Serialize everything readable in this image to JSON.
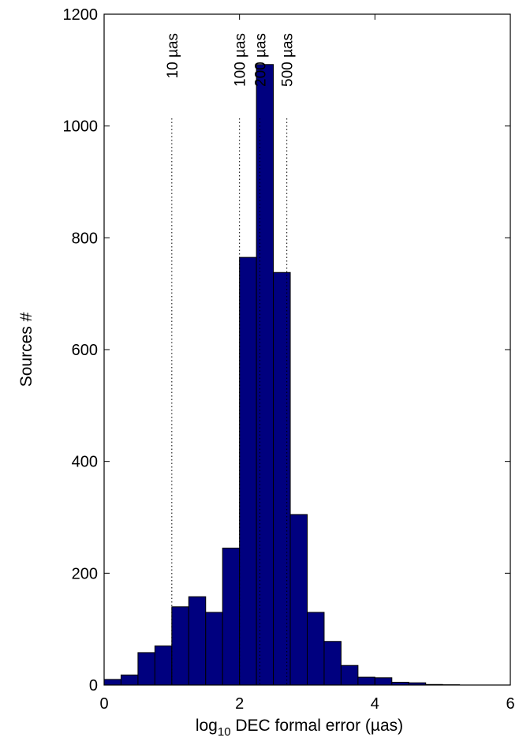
{
  "chart_data": {
    "type": "bar",
    "subtype": "histogram",
    "bin_width": 0.25,
    "bins": [
      {
        "x0": 0.0,
        "x1": 0.25,
        "value": 10
      },
      {
        "x0": 0.25,
        "x1": 0.5,
        "value": 18
      },
      {
        "x0": 0.5,
        "x1": 0.75,
        "value": 58
      },
      {
        "x0": 0.75,
        "x1": 1.0,
        "value": 70
      },
      {
        "x0": 1.0,
        "x1": 1.25,
        "value": 140
      },
      {
        "x0": 1.25,
        "x1": 1.5,
        "value": 158
      },
      {
        "x0": 1.5,
        "x1": 1.75,
        "value": 130
      },
      {
        "x0": 1.75,
        "x1": 2.0,
        "value": 245
      },
      {
        "x0": 2.0,
        "x1": 2.25,
        "value": 765
      },
      {
        "x0": 2.25,
        "x1": 2.5,
        "value": 1110
      },
      {
        "x0": 2.5,
        "x1": 2.75,
        "value": 738
      },
      {
        "x0": 2.75,
        "x1": 3.0,
        "value": 305
      },
      {
        "x0": 3.0,
        "x1": 3.25,
        "value": 130
      },
      {
        "x0": 3.25,
        "x1": 3.5,
        "value": 78
      },
      {
        "x0": 3.5,
        "x1": 3.75,
        "value": 35
      },
      {
        "x0": 3.75,
        "x1": 4.0,
        "value": 14
      },
      {
        "x0": 4.0,
        "x1": 4.25,
        "value": 13
      },
      {
        "x0": 4.25,
        "x1": 4.5,
        "value": 5
      },
      {
        "x0": 4.5,
        "x1": 4.75,
        "value": 4
      },
      {
        "x0": 4.75,
        "x1": 5.0,
        "value": 1
      },
      {
        "x0": 5.0,
        "x1": 5.25,
        "value": 0.5
      },
      {
        "x0": 5.25,
        "x1": 5.5,
        "value": 0
      },
      {
        "x0": 5.5,
        "x1": 5.75,
        "value": 0
      },
      {
        "x0": 5.75,
        "x1": 6.0,
        "value": 0
      }
    ],
    "xlabel_prefix": "log",
    "xlabel_subscript": "10",
    "xlabel_suffix": " DEC formal error (µas)",
    "ylabel": "Sources #",
    "xlim": [
      0,
      6
    ],
    "ylim": [
      0,
      1200
    ],
    "xticks": [
      0,
      2,
      4,
      6
    ],
    "yticks": [
      0,
      200,
      400,
      600,
      800,
      1000,
      1200
    ],
    "grid": false,
    "reference_lines": [
      {
        "x": 1.0,
        "label": "10 µas"
      },
      {
        "x": 2.0,
        "label": "100 µas"
      },
      {
        "x": 2.301,
        "label": "200 µas"
      },
      {
        "x": 2.699,
        "label": "500 µas"
      }
    ],
    "colors": {
      "bar_fill": "#00007f",
      "bar_edge": "#000000",
      "ref_line": "#000000"
    }
  }
}
